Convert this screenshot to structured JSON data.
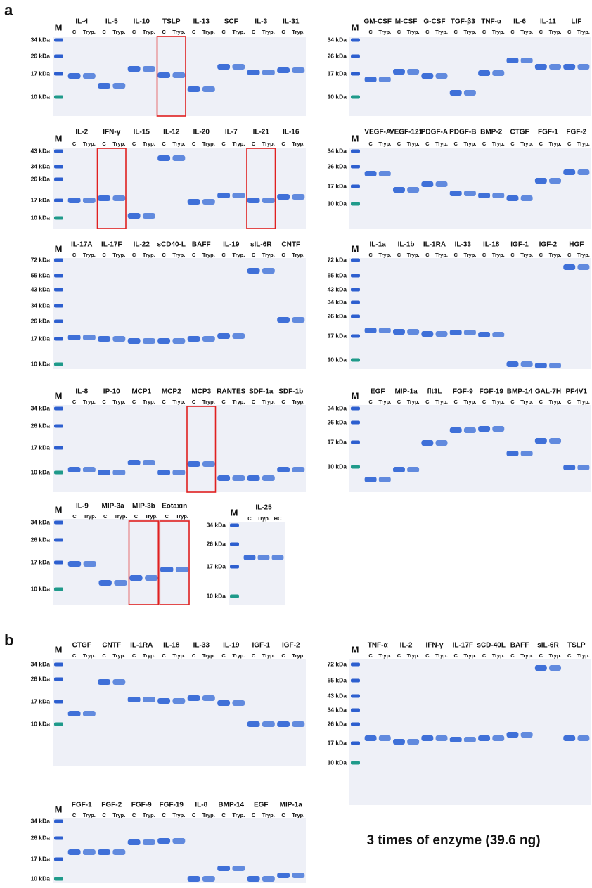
{
  "figure": {
    "panels": [
      {
        "label": "a",
        "gels": [
          {
            "marker_lane": "M",
            "markers": [
              "34 kDa",
              "26 kDa",
              "17 kDa",
              "10 kDa"
            ],
            "groups": [
              {
                "name": "IL-4",
                "lanes": [
                  "C",
                  "Tryp."
                ]
              },
              {
                "name": "IL-5",
                "lanes": [
                  "C",
                  "Tryp."
                ]
              },
              {
                "name": "IL-10",
                "lanes": [
                  "C",
                  "Tryp."
                ]
              },
              {
                "name": "TSLP",
                "lanes": [
                  "C",
                  "Tryp."
                ]
              },
              {
                "name": "IL-13",
                "lanes": [
                  "C",
                  "Tryp."
                ]
              },
              {
                "name": "SCF",
                "lanes": [
                  "C",
                  "Tryp."
                ]
              },
              {
                "name": "IL-3",
                "lanes": [
                  "C",
                  "Tryp."
                ]
              },
              {
                "name": "IL-31",
                "lanes": [
                  "C",
                  "Tryp."
                ]
              }
            ]
          },
          {
            "marker_lane": "M",
            "markers": [
              "34 kDa",
              "26 kDa",
              "17 kDa",
              "10 kDa"
            ],
            "groups": [
              {
                "name": "GM-CSF",
                "lanes": [
                  "C",
                  "Tryp."
                ]
              },
              {
                "name": "M-CSF",
                "lanes": [
                  "C",
                  "Tryp."
                ]
              },
              {
                "name": "G-CSF",
                "lanes": [
                  "C",
                  "Tryp."
                ]
              },
              {
                "name": "TGF-β3",
                "lanes": [
                  "C",
                  "Tryp."
                ]
              },
              {
                "name": "TNF-α",
                "lanes": [
                  "C",
                  "Tryp."
                ]
              },
              {
                "name": "IL-6",
                "lanes": [
                  "C",
                  "Tryp."
                ]
              },
              {
                "name": "IL-11",
                "lanes": [
                  "C",
                  "Tryp."
                ]
              },
              {
                "name": "LIF",
                "lanes": [
                  "C",
                  "Tryp."
                ]
              }
            ]
          },
          {
            "marker_lane": "M",
            "markers": [
              "43 kDa",
              "34 kDa",
              "26 kDa",
              "17 kDa",
              "10 kDa"
            ],
            "groups": [
              {
                "name": "IL-2",
                "lanes": [
                  "C",
                  "Tryp."
                ]
              },
              {
                "name": "IFN-γ",
                "lanes": [
                  "C",
                  "Tryp."
                ]
              },
              {
                "name": "IL-15",
                "lanes": [
                  "C",
                  "Tryp."
                ]
              },
              {
                "name": "IL-12",
                "lanes": [
                  "C",
                  "Tryp."
                ]
              },
              {
                "name": "IL-20",
                "lanes": [
                  "C",
                  "Tryp."
                ]
              },
              {
                "name": "IL-7",
                "lanes": [
                  "C",
                  "Tryp."
                ]
              },
              {
                "name": "IL-21",
                "lanes": [
                  "C",
                  "Tryp."
                ]
              },
              {
                "name": "IL-16",
                "lanes": [
                  "C",
                  "Tryp."
                ]
              }
            ]
          },
          {
            "marker_lane": "M",
            "markers": [
              "34 kDa",
              "26 kDa",
              "17 kDa",
              "10 kDa"
            ],
            "groups": [
              {
                "name": "VEGF-A",
                "lanes": [
                  "C",
                  "Tryp."
                ]
              },
              {
                "name": "VEGF-121",
                "lanes": [
                  "C",
                  "Tryp."
                ]
              },
              {
                "name": "PDGF-A",
                "lanes": [
                  "C",
                  "Tryp."
                ]
              },
              {
                "name": "PDGF-B",
                "lanes": [
                  "C",
                  "Tryp."
                ]
              },
              {
                "name": "BMP-2",
                "lanes": [
                  "C",
                  "Tryp."
                ]
              },
              {
                "name": "CTGF",
                "lanes": [
                  "C",
                  "Tryp."
                ]
              },
              {
                "name": "FGF-1",
                "lanes": [
                  "C",
                  "Tryp."
                ]
              },
              {
                "name": "FGF-2",
                "lanes": [
                  "C",
                  "Tryp."
                ]
              }
            ]
          },
          {
            "marker_lane": "M",
            "markers": [
              "72 kDa",
              "55 kDa",
              "43 kDa",
              "34 kDa",
              "26 kDa",
              "17 kDa",
              "10 kDa"
            ],
            "groups": [
              {
                "name": "IL-17A",
                "lanes": [
                  "C",
                  "Tryp."
                ]
              },
              {
                "name": "IL-17F",
                "lanes": [
                  "C",
                  "Tryp."
                ]
              },
              {
                "name": "IL-22",
                "lanes": [
                  "C",
                  "Tryp."
                ]
              },
              {
                "name": "sCD40-L",
                "lanes": [
                  "C",
                  "Tryp."
                ]
              },
              {
                "name": "BAFF",
                "lanes": [
                  "C",
                  "Tryp."
                ]
              },
              {
                "name": "IL-19",
                "lanes": [
                  "C",
                  "Tryp."
                ]
              },
              {
                "name": "sIL-6R",
                "lanes": [
                  "C",
                  "Tryp."
                ]
              },
              {
                "name": "CNTF",
                "lanes": [
                  "C",
                  "Tryp."
                ]
              }
            ]
          },
          {
            "marker_lane": "M",
            "markers": [
              "72 kDa",
              "55 kDa",
              "43 kDa",
              "34 kDa",
              "26 kDa",
              "17 kDa",
              "10 kDa"
            ],
            "groups": [
              {
                "name": "IL-1a",
                "lanes": [
                  "C",
                  "Tryp."
                ]
              },
              {
                "name": "IL-1b",
                "lanes": [
                  "C",
                  "Tryp."
                ]
              },
              {
                "name": "IL-1RA",
                "lanes": [
                  "C",
                  "Tryp."
                ]
              },
              {
                "name": "IL-33",
                "lanes": [
                  "C",
                  "Tryp."
                ]
              },
              {
                "name": "IL-18",
                "lanes": [
                  "C",
                  "Tryp."
                ]
              },
              {
                "name": "IGF-1",
                "lanes": [
                  "C",
                  "Tryp."
                ]
              },
              {
                "name": "IGF-2",
                "lanes": [
                  "C",
                  "Tryp."
                ]
              },
              {
                "name": "HGF",
                "lanes": [
                  "C",
                  "Tryp."
                ]
              }
            ]
          },
          {
            "marker_lane": "M",
            "markers": [
              "34 kDa",
              "26 kDa",
              "17 kDa",
              "10 kDa"
            ],
            "groups": [
              {
                "name": "IL-8",
                "lanes": [
                  "C",
                  "Tryp."
                ]
              },
              {
                "name": "IP-10",
                "lanes": [
                  "C",
                  "Tryp."
                ]
              },
              {
                "name": "MCP1",
                "lanes": [
                  "C",
                  "Tryp."
                ]
              },
              {
                "name": "MCP2",
                "lanes": [
                  "C",
                  "Tryp."
                ]
              },
              {
                "name": "MCP3",
                "lanes": [
                  "C",
                  "Tryp."
                ]
              },
              {
                "name": "RANTES",
                "lanes": [
                  "C",
                  "Tryp."
                ]
              },
              {
                "name": "SDF-1a",
                "lanes": [
                  "C",
                  "Tryp."
                ]
              },
              {
                "name": "SDF-1b",
                "lanes": [
                  "C",
                  "Tryp."
                ]
              }
            ]
          },
          {
            "marker_lane": "M",
            "markers": [
              "34 kDa",
              "26 kDa",
              "17 kDa",
              "10 kDa"
            ],
            "groups": [
              {
                "name": "EGF",
                "lanes": [
                  "C",
                  "Tryp."
                ]
              },
              {
                "name": "MIP-1a",
                "lanes": [
                  "C",
                  "Tryp."
                ]
              },
              {
                "name": "flt3L",
                "lanes": [
                  "C",
                  "Tryp."
                ]
              },
              {
                "name": "FGF-9",
                "lanes": [
                  "C",
                  "Tryp."
                ]
              },
              {
                "name": "FGF-19",
                "lanes": [
                  "C",
                  "Tryp."
                ]
              },
              {
                "name": "BMP-14",
                "lanes": [
                  "C",
                  "Tryp."
                ]
              },
              {
                "name": "GAL-7H",
                "lanes": [
                  "C",
                  "Tryp."
                ]
              },
              {
                "name": "PF4V1",
                "lanes": [
                  "C",
                  "Tryp."
                ]
              }
            ]
          },
          {
            "marker_lane": "M",
            "markers": [
              "34 kDa",
              "26 kDa",
              "17 kDa",
              "10 kDa"
            ],
            "groups": [
              {
                "name": "IL-9",
                "lanes": [
                  "C",
                  "Tryp."
                ]
              },
              {
                "name": "MIP-3a",
                "lanes": [
                  "C",
                  "Tryp."
                ]
              },
              {
                "name": "MIP-3b",
                "lanes": [
                  "C",
                  "Tryp."
                ]
              },
              {
                "name": "Eotaxin",
                "lanes": [
                  "C",
                  "Tryp."
                ]
              }
            ]
          },
          {
            "marker_lane": "M",
            "markers": [
              "34 kDa",
              "26 kDa",
              "17 kDa",
              "10 kDa"
            ],
            "groups": [
              {
                "name": "IL-25",
                "lanes": [
                  "C",
                  "Tryp.",
                  "HC"
                ]
              }
            ]
          }
        ]
      },
      {
        "label": "b",
        "caption": "3 times of enzyme (39.6 ng)",
        "gels": [
          {
            "marker_lane": "M",
            "markers": [
              "34 kDa",
              "26 kDa",
              "17 kDa",
              "10 kDa"
            ],
            "groups": [
              {
                "name": "CTGF",
                "lanes": [
                  "C",
                  "Tryp."
                ]
              },
              {
                "name": "CNTF",
                "lanes": [
                  "C",
                  "Tryp."
                ]
              },
              {
                "name": "IL-1RA",
                "lanes": [
                  "C",
                  "Tryp."
                ]
              },
              {
                "name": "IL-18",
                "lanes": [
                  "C",
                  "Tryp."
                ]
              },
              {
                "name": "IL-33",
                "lanes": [
                  "C",
                  "Tryp."
                ]
              },
              {
                "name": "IL-19",
                "lanes": [
                  "C",
                  "Tryp."
                ]
              },
              {
                "name": "IGF-1",
                "lanes": [
                  "C",
                  "Tryp."
                ]
              },
              {
                "name": "IGF-2",
                "lanes": [
                  "C",
                  "Tryp."
                ]
              }
            ]
          },
          {
            "marker_lane": "M",
            "markers": [
              "72 kDa",
              "55 kDa",
              "43 kDa",
              "34 kDa",
              "26 kDa",
              "17 kDa",
              "10 kDa"
            ],
            "groups": [
              {
                "name": "TNF-α",
                "lanes": [
                  "C",
                  "Tryp."
                ]
              },
              {
                "name": "IL-2",
                "lanes": [
                  "C",
                  "Tryp."
                ]
              },
              {
                "name": "IFN-γ",
                "lanes": [
                  "C",
                  "Tryp."
                ]
              },
              {
                "name": "IL-17F",
                "lanes": [
                  "C",
                  "Tryp."
                ]
              },
              {
                "name": "sCD-40L",
                "lanes": [
                  "C",
                  "Tryp."
                ]
              },
              {
                "name": "BAFF",
                "lanes": [
                  "C",
                  "Tryp."
                ]
              },
              {
                "name": "sIL-6R",
                "lanes": [
                  "C",
                  "Tryp."
                ]
              },
              {
                "name": "TSLP",
                "lanes": [
                  "C",
                  "Tryp."
                ]
              }
            ]
          },
          {
            "marker_lane": "M",
            "markers": [
              "34 kDa",
              "26 kDa",
              "17 kDa",
              "10 kDa"
            ],
            "groups": [
              {
                "name": "FGF-1",
                "lanes": [
                  "C",
                  "Tryp."
                ]
              },
              {
                "name": "FGF-2",
                "lanes": [
                  "C",
                  "Tryp."
                ]
              },
              {
                "name": "FGF-9",
                "lanes": [
                  "C",
                  "Tryp."
                ]
              },
              {
                "name": "FGF-19",
                "lanes": [
                  "C",
                  "Tryp."
                ]
              },
              {
                "name": "IL-8",
                "lanes": [
                  "C",
                  "Tryp."
                ]
              },
              {
                "name": "BMP-14",
                "lanes": [
                  "C",
                  "Tryp."
                ]
              },
              {
                "name": "EGF",
                "lanes": [
                  "C",
                  "Tryp."
                ]
              },
              {
                "name": "MIP-1a",
                "lanes": [
                  "C",
                  "Tryp."
                ]
              }
            ]
          }
        ]
      }
    ]
  }
}
